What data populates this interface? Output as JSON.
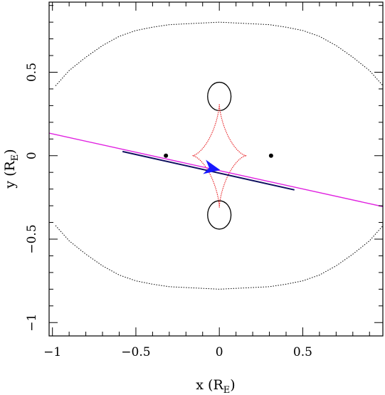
{
  "chart_data": {
    "type": "line",
    "xlabel": {
      "main": "x (R",
      "sub": "E",
      "close": ")"
    },
    "ylabel": {
      "main": "y (R",
      "sub": "E",
      "close": ")"
    },
    "xlim": [
      -1.02,
      0.98
    ],
    "ylim": [
      -1.08,
      0.92
    ],
    "xticks": [
      {
        "value": -1.0,
        "label": "−1"
      },
      {
        "value": -0.5,
        "label": "−0.5"
      },
      {
        "value": 0.0,
        "label": "0"
      },
      {
        "value": 0.5,
        "label": "0.5"
      }
    ],
    "yticks": [
      {
        "value": -1.0,
        "label": "−1"
      },
      {
        "value": -0.5,
        "label": "−0.5"
      },
      {
        "value": 0.0,
        "label": "0"
      },
      {
        "value": 0.5,
        "label": "0.5"
      }
    ],
    "minor_step": 0.1,
    "grid": false,
    "colors": {
      "caustic": "#e8262a",
      "critical_curve": "#000000",
      "source_trajectory": "#e020e0",
      "source_track": "#101060",
      "direction_arrow": "#1818ff",
      "lens_points": "#000000"
    },
    "lens_points": [
      {
        "x": -0.32,
        "y": 0.0
      },
      {
        "x": 0.31,
        "y": 0.0
      }
    ],
    "caustic": {
      "center": [
        0.0,
        0.0
      ],
      "half_width": 0.16,
      "half_height": 0.31,
      "style": "dotted"
    },
    "critical_curve_outer": {
      "points": [
        [
          0.0,
          0.8
        ],
        [
          0.1,
          0.795
        ],
        [
          0.2,
          0.79
        ],
        [
          0.3,
          0.785
        ],
        [
          0.4,
          0.77
        ],
        [
          0.5,
          0.75
        ],
        [
          0.6,
          0.715
        ],
        [
          0.7,
          0.66
        ],
        [
          0.8,
          0.59
        ],
        [
          0.9,
          0.51
        ],
        [
          0.98,
          0.42
        ]
      ],
      "style": "dotted"
    },
    "critical_curve_inner": {
      "center_y": 0.355,
      "half_width": 0.07,
      "half_height": 0.085
    },
    "source_trajectory": {
      "points": [
        [
          -1.02,
          0.135
        ],
        [
          0.98,
          -0.305
        ]
      ]
    },
    "source_track": {
      "points": [
        [
          -0.58,
          0.025
        ],
        [
          0.45,
          -0.205
        ]
      ]
    },
    "direction_arrow": {
      "at": [
        -0.05,
        -0.075
      ],
      "tip": [
        0.0,
        -0.085
      ]
    }
  }
}
